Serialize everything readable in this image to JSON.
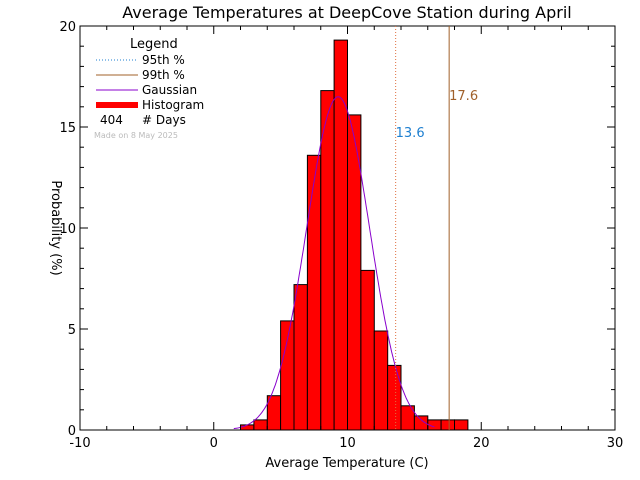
{
  "chart_data": {
    "type": "bar",
    "title": "Average Temperatures at DeepCove Station during April",
    "xlabel": "Average Temperature (C)",
    "ylabel": "Probability (%)",
    "xlim": [
      -10,
      30
    ],
    "ylim": [
      0,
      20
    ],
    "x_ticks": [
      "-10",
      "0",
      "10",
      "20",
      "30"
    ],
    "x_tick_values": [
      -10,
      0,
      10,
      20,
      30
    ],
    "y_ticks": [
      "0",
      "5",
      "10",
      "15",
      "20"
    ],
    "y_tick_values": [
      0,
      5,
      10,
      15,
      20
    ],
    "histogram": {
      "bin_edges": [
        2,
        3,
        4,
        5,
        6,
        7,
        8,
        9,
        10,
        11,
        12,
        13,
        14,
        15,
        16,
        17,
        18,
        19
      ],
      "values": [
        0.25,
        0.5,
        1.7,
        5.4,
        7.2,
        13.6,
        16.8,
        19.3,
        15.6,
        7.9,
        4.9,
        3.2,
        1.2,
        0.7,
        0.5,
        0.5,
        0.5
      ],
      "color": "#ff0000"
    },
    "gaussian": {
      "mean": 9.3,
      "sigma": 2.35,
      "peak": 16.5,
      "range": [
        1.5,
        16.5
      ],
      "color": "#8800cc"
    },
    "percentile_95": {
      "value": 13.6,
      "label": "13.6",
      "color": "#1e7fd0",
      "line_color": "#e07040"
    },
    "percentile_99": {
      "value": 17.6,
      "label": "17.6",
      "color": "#a0602a"
    },
    "legend": {
      "title": "Legend",
      "items": [
        {
          "label": "95th %",
          "style": "dotted",
          "color": "#1e7fd0"
        },
        {
          "label": "99th %",
          "style": "solid",
          "color": "#a0602a"
        },
        {
          "label": "Gaussian",
          "style": "solid",
          "color": "#8800cc"
        },
        {
          "label": "Histogram",
          "style": "thick",
          "color": "#ff0000"
        }
      ],
      "days_count": "404",
      "days_label": "# Days",
      "made_on": "Made on 8 May 2025"
    }
  }
}
